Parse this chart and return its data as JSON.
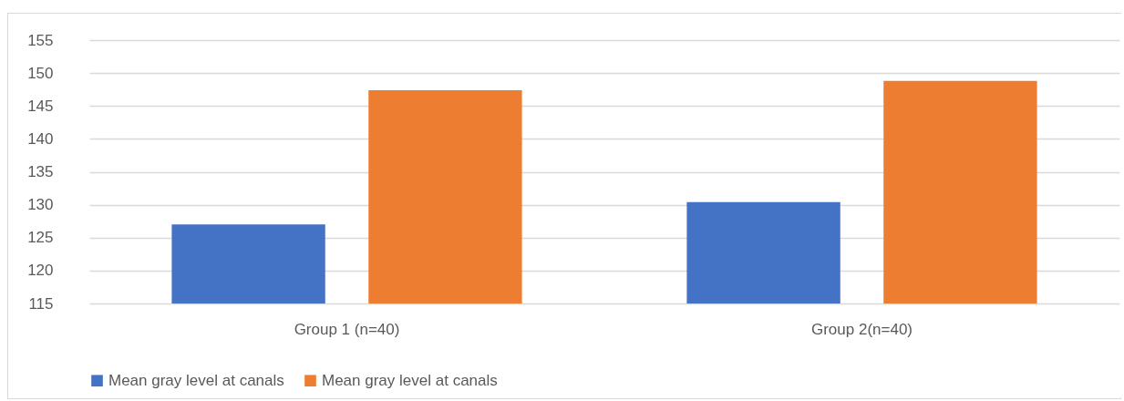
{
  "chart_data": {
    "type": "bar",
    "categories": [
      "Group 1 (n=40)",
      "Group 2(n=40)"
    ],
    "series": [
      {
        "name": "Mean gray level at canals",
        "color": "#4472c4",
        "values": [
          127.0,
          130.4
        ]
      },
      {
        "name": "Mean gray level at canals",
        "color": "#ed7d31",
        "values": [
          147.4,
          148.8
        ]
      }
    ],
    "ylim": [
      115,
      155
    ],
    "yticks": [
      115,
      120,
      125,
      130,
      135,
      140,
      145,
      150,
      155
    ],
    "grid": "y",
    "legend": "bottom"
  }
}
